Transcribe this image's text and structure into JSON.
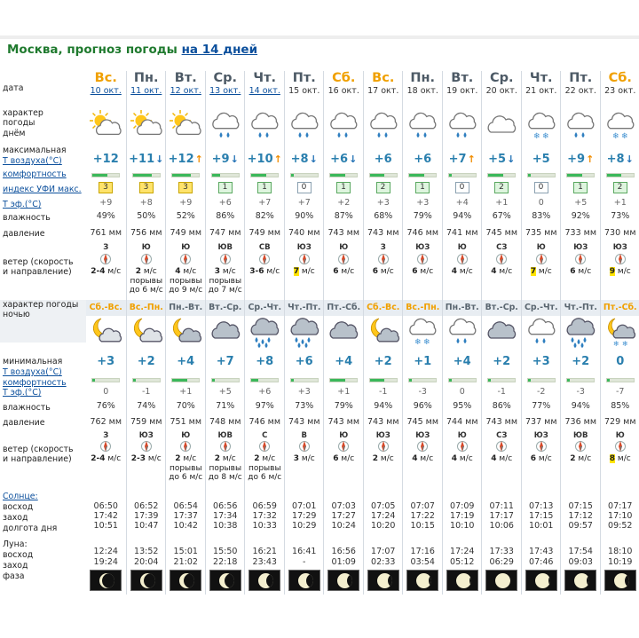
{
  "title": {
    "main": "Москва, прогноз погоды",
    "link": "на 14 дней"
  },
  "labels": {
    "date": "дата",
    "day_character": "характер погоды днём",
    "tmax_1": "максимальная",
    "tmax_2": "Т воздуха(°С)",
    "comfort": "комфортность",
    "uvi": "индекс УФИ макс.",
    "teff": "Т эф.(°С)",
    "humidity": "влажность",
    "pressure": "давление",
    "wind": "ветер (скорость и направление)",
    "night_character": "характер погоды ночью",
    "tmin_1": "минимальная",
    "tmin_2": "Т воздуха(°С)",
    "comfort2": "комфортность",
    "teff2": "Т эф.(°С)",
    "humidity2": "влажность",
    "pressure2": "давление",
    "wind2": "ветер (скорость и направление)",
    "sun_1": "Солнце:",
    "sun_2": "восход",
    "sun_3": "заход",
    "sun_4": "долгота дня",
    "moon_1": "Луна:",
    "moon_2": "восход",
    "moon_3": "заход",
    "moon_4": "фаза"
  },
  "days": [
    {
      "day": "Вс.",
      "date": "10 окт.",
      "weekend": true,
      "link": true,
      "night": "Сб.-Вс.",
      "night_we": true,
      "day_icon": "sun-cloud",
      "night_icon": "moon-cloud",
      "tmax": "+12",
      "tmax_arrow": "",
      "comfort_day": 0.55,
      "uvi": "3",
      "uvi_color": "y",
      "teff": "+9",
      "hum": "49%",
      "pres": "761 мм",
      "wdir": "З",
      "wspeed": "2-4",
      "wunit": " м/с",
      "wgust": "",
      "whi": false,
      "tmin": "+3",
      "comfort_night": 0.1,
      "teff2": "0",
      "hum2": "76%",
      "pres2": "762 мм",
      "wdir2": "З",
      "wspeed2": "2-4",
      "wunit2": " м/с",
      "wgust2": "",
      "whi2": false,
      "sunrise": "06:50",
      "sunset": "17:42",
      "daylen": "10:51",
      "moonrise": "12:24",
      "moonset": "19:24",
      "moon_phase": 0.18
    },
    {
      "day": "Пн.",
      "date": "11 окт.",
      "weekend": false,
      "link": true,
      "night": "Вс.-Пн.",
      "night_we": true,
      "day_icon": "sun-cloud",
      "night_icon": "moon-cloud",
      "tmax": "+11",
      "tmax_arrow": "down",
      "comfort_day": 0.7,
      "uvi": "3",
      "uvi_color": "y",
      "teff": "+8",
      "hum": "50%",
      "pres": "756 мм",
      "wdir": "Ю",
      "wspeed": "2",
      "wunit": " м/с",
      "wgust": "порывы до 6 м/с",
      "whi": false,
      "tmin": "+2",
      "comfort_night": 0.1,
      "teff2": "-1",
      "hum2": "74%",
      "pres2": "759 мм",
      "wdir2": "ЮЗ",
      "wspeed2": "2-3",
      "wunit2": " м/с",
      "wgust2": "",
      "whi2": false,
      "sunrise": "06:52",
      "sunset": "17:39",
      "daylen": "10:47",
      "moonrise": "13:52",
      "moonset": "20:04",
      "moon_phase": 0.25
    },
    {
      "day": "Вт.",
      "date": "12 окт.",
      "weekend": false,
      "link": true,
      "night": "Пн.-Вт.",
      "night_we": false,
      "day_icon": "sun-cloud",
      "night_icon": "moon-cloud-grey",
      "tmax": "+12",
      "tmax_arrow": "up",
      "comfort_day": 0.7,
      "uvi": "3",
      "uvi_color": "y",
      "teff": "+9",
      "hum": "52%",
      "pres": "749 мм",
      "wdir": "Ю",
      "wspeed": "4",
      "wunit": " м/с",
      "wgust": "порывы до 9 м/с",
      "whi": false,
      "tmin": "+4",
      "comfort_night": 0.55,
      "teff2": "+1",
      "hum2": "70%",
      "pres2": "751 мм",
      "wdir2": "Ю",
      "wspeed2": "2",
      "wunit2": " м/с",
      "wgust2": "порывы до 6 м/с",
      "whi2": false,
      "sunrise": "06:54",
      "sunset": "17:37",
      "daylen": "10:42",
      "moonrise": "15:01",
      "moonset": "21:02",
      "moon_phase": 0.32
    },
    {
      "day": "Ср.",
      "date": "13 окт.",
      "weekend": false,
      "link": true,
      "night": "Вт.-Ср.",
      "night_we": false,
      "day_icon": "cloud-rain",
      "night_icon": "cloud-grey",
      "tmax": "+9",
      "tmax_arrow": "down",
      "comfort_day": 0.3,
      "uvi": "1",
      "uvi_color": "g",
      "teff": "+6",
      "hum": "86%",
      "pres": "747 мм",
      "wdir": "ЮВ",
      "wspeed": "3",
      "wunit": " м/с",
      "wgust": "порывы до 7 м/с",
      "whi": false,
      "tmin": "+7",
      "comfort_night": 0.1,
      "teff2": "+5",
      "hum2": "71%",
      "pres2": "748 мм",
      "wdir2": "ЮВ",
      "wspeed2": "2",
      "wunit2": " м/с",
      "wgust2": "порывы до 8 м/с",
      "whi2": false,
      "sunrise": "06:56",
      "sunset": "17:34",
      "daylen": "10:38",
      "moonrise": "15:50",
      "moonset": "22:18",
      "moon_phase": 0.4
    },
    {
      "day": "Чт.",
      "date": "14 окт.",
      "weekend": false,
      "link": true,
      "night": "Ср.-Чт.",
      "night_we": false,
      "day_icon": "cloud-rain",
      "night_icon": "cloud-rain-heavy",
      "tmax": "+10",
      "tmax_arrow": "up",
      "comfort_day": 0.55,
      "uvi": "1",
      "uvi_color": "g",
      "teff": "+7",
      "hum": "82%",
      "pres": "749 мм",
      "wdir": "СВ",
      "wspeed": "3-6",
      "wunit": " м/с",
      "wgust": "",
      "whi": false,
      "tmin": "+8",
      "comfort_night": 0.25,
      "teff2": "+6",
      "hum2": "97%",
      "pres2": "746 мм",
      "wdir2": "С",
      "wspeed2": "2",
      "wunit2": " м/с",
      "wgust2": "порывы до 6 м/с",
      "whi2": false,
      "sunrise": "06:59",
      "sunset": "17:32",
      "daylen": "10:33",
      "moonrise": "16:21",
      "moonset": "23:43",
      "moon_phase": 0.5
    },
    {
      "day": "Пт.",
      "date": "15 окт.",
      "weekend": false,
      "link": false,
      "night": "Чт.-Пт.",
      "night_we": false,
      "day_icon": "cloud-rain",
      "night_icon": "cloud-rain-heavy",
      "tmax": "+8",
      "tmax_arrow": "down",
      "comfort_day": 0.1,
      "uvi": "0",
      "uvi_color": "",
      "teff": "+7",
      "hum": "90%",
      "pres": "740 мм",
      "wdir": "ЮЗ",
      "wspeed": "7",
      "wunit": " м/с",
      "wgust": "",
      "whi": true,
      "tmin": "+6",
      "comfort_night": 0.1,
      "teff2": "+3",
      "hum2": "73%",
      "pres2": "743 мм",
      "wdir2": "В",
      "wspeed2": "3",
      "wunit2": " м/с",
      "wgust2": "",
      "whi2": false,
      "sunrise": "07:01",
      "sunset": "17:29",
      "daylen": "10:29",
      "moonrise": "16:41",
      "moonset": "-",
      "moon_phase": 0.58
    },
    {
      "day": "Сб.",
      "date": "16 окт.",
      "weekend": true,
      "link": false,
      "night": "Пт.-Сб.",
      "night_we": false,
      "day_icon": "cloud-rain",
      "night_icon": "cloud-grey",
      "tmax": "+6",
      "tmax_arrow": "down",
      "comfort_day": 0.55,
      "uvi": "1",
      "uvi_color": "g",
      "teff": "+2",
      "hum": "87%",
      "pres": "743 мм",
      "wdir": "Ю",
      "wspeed": "6",
      "wunit": " м/с",
      "wgust": "",
      "whi": false,
      "tmin": "+4",
      "comfort_night": 0.55,
      "teff2": "+1",
      "hum2": "79%",
      "pres2": "743 мм",
      "wdir2": "Ю",
      "wspeed2": "6",
      "wunit2": " м/с",
      "wgust2": "",
      "whi2": false,
      "sunrise": "07:03",
      "sunset": "17:27",
      "daylen": "10:24",
      "moonrise": "16:56",
      "moonset": "01:09",
      "moon_phase": 0.66
    },
    {
      "day": "Вс.",
      "date": "17 окт.",
      "weekend": true,
      "link": false,
      "night": "Сб.-Вс.",
      "night_we": true,
      "day_icon": "cloud-rain",
      "night_icon": "moon-cloud-grey",
      "tmax": "+6",
      "tmax_arrow": "",
      "comfort_day": 0.55,
      "uvi": "2",
      "uvi_color": "g",
      "teff": "+3",
      "hum": "68%",
      "pres": "743 мм",
      "wdir": "З",
      "wspeed": "6",
      "wunit": " м/с",
      "wgust": "",
      "whi": false,
      "tmin": "+2",
      "comfort_night": 0.55,
      "teff2": "-1",
      "hum2": "94%",
      "pres2": "743 мм",
      "wdir2": "ЮЗ",
      "wspeed2": "2",
      "wunit2": " м/с",
      "wgust2": "",
      "whi2": false,
      "sunrise": "07:05",
      "sunset": "17:24",
      "daylen": "10:20",
      "moonrise": "17:07",
      "moonset": "02:33",
      "moon_phase": 0.74
    },
    {
      "day": "Пн.",
      "date": "18 окт.",
      "weekend": false,
      "link": false,
      "night": "Вс.-Пн.",
      "night_we": true,
      "day_icon": "cloud-rain",
      "night_icon": "cloud-snow",
      "tmax": "+6",
      "tmax_arrow": "",
      "comfort_day": 0.55,
      "uvi": "1",
      "uvi_color": "g",
      "teff": "+3",
      "hum": "79%",
      "pres": "746 мм",
      "wdir": "ЮЗ",
      "wspeed": "6",
      "wunit": " м/с",
      "wgust": "",
      "whi": false,
      "tmin": "+1",
      "comfort_night": 0.1,
      "teff2": "-3",
      "hum2": "96%",
      "pres2": "745 мм",
      "wdir2": "ЮЗ",
      "wspeed2": "4",
      "wunit2": " м/с",
      "wgust2": "",
      "whi2": false,
      "sunrise": "07:07",
      "sunset": "17:22",
      "daylen": "10:15",
      "moonrise": "17:16",
      "moonset": "03:54",
      "moon_phase": 0.82
    },
    {
      "day": "Вт.",
      "date": "19 окт.",
      "weekend": false,
      "link": false,
      "night": "Пн.-Вт.",
      "night_we": false,
      "day_icon": "cloud-rain",
      "night_icon": "cloud-rain",
      "tmax": "+7",
      "tmax_arrow": "up",
      "comfort_day": 0.1,
      "uvi": "0",
      "uvi_color": "",
      "teff": "+4",
      "hum": "94%",
      "pres": "741 мм",
      "wdir": "Ю",
      "wspeed": "4",
      "wunit": " м/с",
      "wgust": "",
      "whi": false,
      "tmin": "+4",
      "comfort_night": 0.1,
      "teff2": "0",
      "hum2": "95%",
      "pres2": "744 мм",
      "wdir2": "Ю",
      "wspeed2": "4",
      "wunit2": " м/с",
      "wgust2": "",
      "whi2": false,
      "sunrise": "07:09",
      "sunset": "17:19",
      "daylen": "10:10",
      "moonrise": "17:24",
      "moonset": "05:12",
      "moon_phase": 0.9
    },
    {
      "day": "Ср.",
      "date": "20 окт.",
      "weekend": false,
      "link": false,
      "night": "Вт.-Ср.",
      "night_we": false,
      "day_icon": "cloud",
      "night_icon": "cloud-grey",
      "tmax": "+5",
      "tmax_arrow": "down",
      "comfort_day": 0.55,
      "uvi": "2",
      "uvi_color": "g",
      "teff": "+1",
      "hum": "67%",
      "pres": "745 мм",
      "wdir": "СЗ",
      "wspeed": "4",
      "wunit": " м/с",
      "wgust": "",
      "whi": false,
      "tmin": "+2",
      "comfort_night": 0.1,
      "teff2": "-1",
      "hum2": "86%",
      "pres2": "743 мм",
      "wdir2": "СЗ",
      "wspeed2": "4",
      "wunit2": " м/с",
      "wgust2": "",
      "whi2": false,
      "sunrise": "07:11",
      "sunset": "17:17",
      "daylen": "10:06",
      "moonrise": "17:33",
      "moonset": "06:29",
      "moon_phase": 1.0
    },
    {
      "day": "Чт.",
      "date": "21 окт.",
      "weekend": false,
      "link": false,
      "night": "Ср.-Чт.",
      "night_we": false,
      "day_icon": "cloud-snow",
      "night_icon": "cloud-rain",
      "tmax": "+5",
      "tmax_arrow": "",
      "comfort_day": 0.1,
      "uvi": "0",
      "uvi_color": "",
      "teff": "0",
      "hum": "83%",
      "pres": "735 мм",
      "wdir": "Ю",
      "wspeed": "7",
      "wunit": " м/с",
      "wgust": "",
      "whi": true,
      "tmin": "+3",
      "comfort_night": 0.1,
      "teff2": "-2",
      "hum2": "77%",
      "pres2": "737 мм",
      "wdir2": "ЮЗ",
      "wspeed2": "6",
      "wunit2": " м/с",
      "wgust2": "",
      "whi2": false,
      "sunrise": "07:13",
      "sunset": "17:15",
      "daylen": "10:01",
      "moonrise": "17:43",
      "moonset": "07:46",
      "moon_phase": 0.9
    },
    {
      "day": "Пт.",
      "date": "22 окт.",
      "weekend": false,
      "link": false,
      "night": "Чт.-Пт.",
      "night_we": false,
      "day_icon": "cloud-rain",
      "night_icon": "cloud-rain-heavy",
      "tmax": "+9",
      "tmax_arrow": "up",
      "comfort_day": 0.55,
      "uvi": "1",
      "uvi_color": "g",
      "teff": "+5",
      "hum": "92%",
      "pres": "733 мм",
      "wdir": "ЮЗ",
      "wspeed": "6",
      "wunit": " м/с",
      "wgust": "",
      "whi": false,
      "tmin": "+2",
      "comfort_night": 0.1,
      "teff2": "-3",
      "hum2": "94%",
      "pres2": "736 мм",
      "wdir2": "ЮВ",
      "wspeed2": "2",
      "wunit2": " м/с",
      "wgust2": "",
      "whi2": false,
      "sunrise": "07:15",
      "sunset": "17:12",
      "daylen": "09:57",
      "moonrise": "17:54",
      "moonset": "09:03",
      "moon_phase": 0.82
    },
    {
      "day": "Сб.",
      "date": "23 окт.",
      "weekend": true,
      "link": false,
      "night": "Пт.-Сб.",
      "night_we": true,
      "day_icon": "cloud-snow",
      "night_icon": "moon-snow",
      "tmax": "+8",
      "tmax_arrow": "down",
      "comfort_day": 0.55,
      "uvi": "2",
      "uvi_color": "g",
      "teff": "+1",
      "hum": "73%",
      "pres": "730 мм",
      "wdir": "ЮЗ",
      "wspeed": "9",
      "wunit": " м/с",
      "wgust": "",
      "whi": true,
      "tmin": "0",
      "comfort_night": 0.1,
      "teff2": "-7",
      "hum2": "85%",
      "pres2": "729 мм",
      "wdir2": "Ю",
      "wspeed2": "8",
      "wunit2": " м/с",
      "wgust2": "",
      "whi2": true,
      "sunrise": "07:17",
      "sunset": "17:10",
      "daylen": "09:52",
      "moonrise": "18:10",
      "moonset": "10:19",
      "moon_phase": 0.74
    }
  ]
}
